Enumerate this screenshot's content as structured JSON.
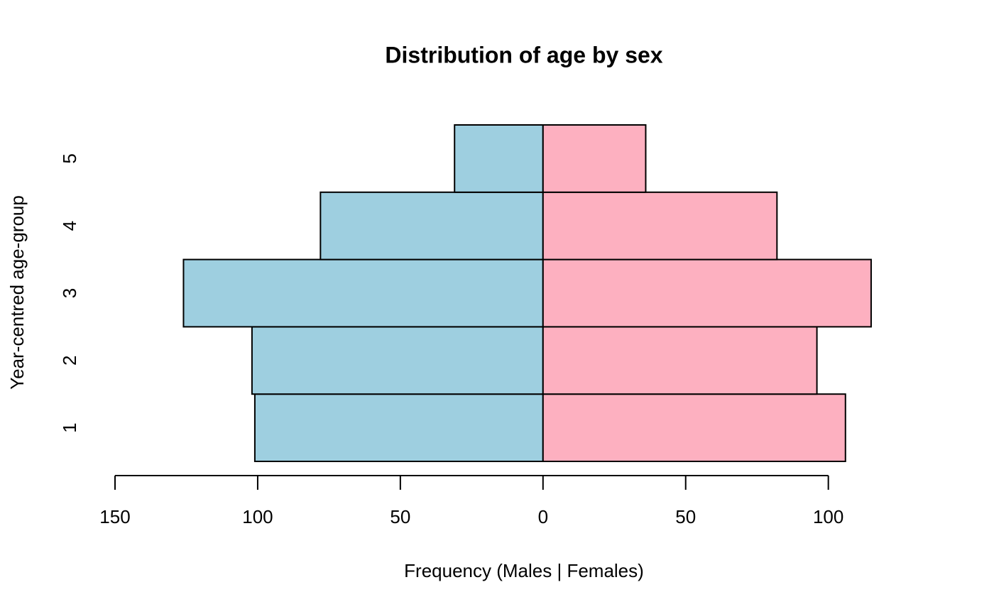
{
  "chart_data": {
    "type": "bar",
    "orientation": "horizontal",
    "title": "Distribution of age by sex",
    "xlabel": "Frequency (Males | Females)",
    "ylabel": "Year-centred age-group",
    "categories": [
      "1",
      "2",
      "3",
      "4",
      "5"
    ],
    "series": [
      {
        "color": "#9ecfe0",
        "values": [
          -101,
          -102,
          -126,
          -78,
          -31
        ]
      },
      {
        "color": "#fdb0c0",
        "values": [
          106,
          96,
          115,
          82,
          36
        ]
      }
    ],
    "xlim": [
      -150,
      118
    ],
    "xticks": [
      {
        "value": -150,
        "label": "150"
      },
      {
        "value": -100,
        "label": "100"
      },
      {
        "value": -50,
        "label": "50"
      },
      0,
      50,
      100
    ]
  }
}
